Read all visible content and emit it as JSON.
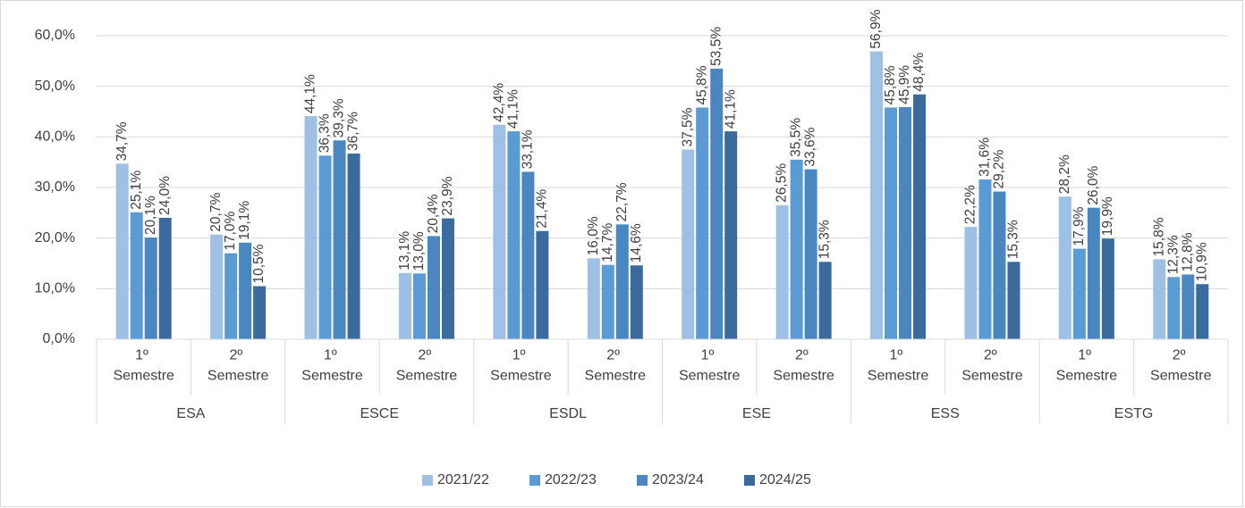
{
  "chart_data": {
    "type": "bar",
    "categories": [
      "1º Semestre",
      "2º Semestre",
      "1º Semestre",
      "2º Semestre",
      "1º Semestre",
      "2º Semestre",
      "1º Semestre",
      "2º Semestre",
      "1º Semestre",
      "2º Semestre",
      "1º Semestre",
      "2º Semestre"
    ],
    "groups": [
      "ESA",
      "ESCE",
      "ESDL",
      "ESE",
      "ESS",
      "ESTG"
    ],
    "series": [
      {
        "name": "2021/22",
        "color": "#9dc0e4",
        "values": [
          34.7,
          20.7,
          44.1,
          13.1,
          42.4,
          16.0,
          37.5,
          26.5,
          56.9,
          22.2,
          28.2,
          15.8
        ],
        "value_labels": [
          "34,7%",
          "20,7%",
          "44,1%",
          "13,1%",
          "42,4%",
          "16,0%",
          "37,5%",
          "26,5%",
          "56,9%",
          "22,2%",
          "28,2%",
          "15,8%"
        ]
      },
      {
        "name": "2022/23",
        "color": "#5b9bd5",
        "values": [
          25.1,
          17.0,
          36.3,
          13.0,
          41.1,
          14.7,
          45.8,
          35.5,
          45.8,
          31.6,
          17.9,
          12.3
        ],
        "value_labels": [
          "25,1%",
          "17,0%",
          "36,3%",
          "13,0%",
          "41,1%",
          "14,7%",
          "45,8%",
          "35,5%",
          "45,8%",
          "31,6%",
          "17,9%",
          "12,3%"
        ]
      },
      {
        "name": "2023/24",
        "color": "#4a86c0",
        "values": [
          20.1,
          19.1,
          39.3,
          20.4,
          33.1,
          22.7,
          53.5,
          33.6,
          45.9,
          29.2,
          26.0,
          12.8
        ],
        "value_labels": [
          "20,1%",
          "19,1%",
          "39,3%",
          "20,4%",
          "33,1%",
          "22,7%",
          "53,5%",
          "33,6%",
          "45,9%",
          "29,2%",
          "26,0%",
          "12,8%"
        ]
      },
      {
        "name": "2024/25",
        "color": "#3b6b9c",
        "values": [
          24.0,
          10.5,
          36.7,
          23.9,
          21.4,
          14.6,
          41.1,
          15.3,
          48.4,
          15.3,
          19.9,
          10.9
        ],
        "value_labels": [
          "24,0%",
          "10,5%",
          "36,7%",
          "23,9%",
          "21,4%",
          "14,6%",
          "41,1%",
          "15,3%",
          "48,4%",
          "15,3%",
          "19,9%",
          "10,9%"
        ]
      }
    ],
    "ylim": [
      0,
      60
    ],
    "yticks": [
      {
        "value": 0,
        "label": "0,0%"
      },
      {
        "value": 10,
        "label": "10,0%"
      },
      {
        "value": 20,
        "label": "20,0%"
      },
      {
        "value": 30,
        "label": "30,0%"
      },
      {
        "value": 40,
        "label": "40,0%"
      },
      {
        "value": 50,
        "label": "50,0%"
      },
      {
        "value": 60,
        "label": "60,0%"
      }
    ],
    "grid": true,
    "legend": "bottom"
  }
}
